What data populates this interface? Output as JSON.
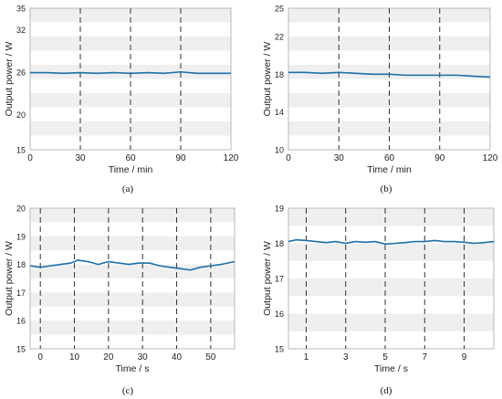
{
  "chart_data": [
    {
      "type": "line",
      "caption": "(a)",
      "xlabel": "Time / min",
      "ylabel": "Output power / W",
      "xlim": [
        0,
        120
      ],
      "ylim": [
        15,
        35
      ],
      "xticks": [
        0,
        30,
        60,
        90,
        120
      ],
      "yticks": [
        15,
        20,
        26,
        32,
        35
      ],
      "vlines": [
        30,
        60,
        90
      ],
      "band_step": 2,
      "grid": false,
      "legend": "none",
      "series": [
        {
          "color": "#1f6fa8",
          "x": [
            0,
            10,
            20,
            30,
            40,
            50,
            60,
            70,
            80,
            90,
            100,
            110,
            120
          ],
          "y": [
            25.9,
            25.9,
            25.8,
            25.9,
            25.8,
            25.9,
            25.8,
            25.9,
            25.8,
            26.0,
            25.8,
            25.8,
            25.8
          ]
        }
      ]
    },
    {
      "type": "line",
      "caption": "(b)",
      "xlabel": "Time / min",
      "ylabel": "Output power / W",
      "xlim": [
        0,
        120
      ],
      "ylim": [
        10,
        25
      ],
      "xticks": [
        0,
        30,
        60,
        90,
        120
      ],
      "yticks": [
        10,
        14,
        18,
        22,
        25
      ],
      "vlines": [
        30,
        60,
        90
      ],
      "band_step": 1.5,
      "grid": false,
      "legend": "none",
      "series": [
        {
          "color": "#1f6fa8",
          "x": [
            0,
            10,
            20,
            30,
            40,
            50,
            60,
            70,
            80,
            90,
            100,
            110,
            120
          ],
          "y": [
            18.2,
            18.2,
            18.1,
            18.2,
            18.1,
            18.0,
            18.0,
            17.9,
            17.9,
            17.9,
            17.9,
            17.8,
            17.7
          ]
        }
      ]
    },
    {
      "type": "line",
      "caption": "(c)",
      "xlabel": "Time / s",
      "ylabel": "Output power / W",
      "xlim": [
        -3,
        57
      ],
      "ylim": [
        15,
        20
      ],
      "xticks": [
        0,
        10,
        20,
        30,
        40,
        50
      ],
      "yticks": [
        15,
        16,
        17,
        18,
        19,
        20
      ],
      "vlines": [
        0,
        10,
        20,
        30,
        40,
        50
      ],
      "band_step": 0.5,
      "grid": false,
      "legend": "none",
      "series": [
        {
          "color": "#1f6fa8",
          "x": [
            -3,
            0,
            3,
            6,
            9,
            11,
            14,
            17,
            20,
            23,
            26,
            29,
            32,
            35,
            38,
            41,
            44,
            47,
            50,
            53,
            57
          ],
          "y": [
            17.95,
            17.9,
            17.95,
            18.0,
            18.05,
            18.15,
            18.1,
            18.0,
            18.1,
            18.05,
            18.0,
            18.05,
            18.05,
            17.95,
            17.9,
            17.85,
            17.8,
            17.9,
            17.95,
            18.0,
            18.1
          ]
        }
      ]
    },
    {
      "type": "line",
      "caption": "(d)",
      "xlabel": "Time / s",
      "ylabel": "Output power / W",
      "xlim": [
        0.1,
        10.5
      ],
      "ylim": [
        15,
        19
      ],
      "xticks": [
        1,
        3,
        5,
        7,
        9
      ],
      "yticks": [
        15,
        16,
        17,
        18,
        19
      ],
      "vlines": [
        1,
        3,
        5,
        7,
        9
      ],
      "band_step": 0.5,
      "grid": false,
      "legend": "none",
      "series": [
        {
          "color": "#1f6fa8",
          "x": [
            0.1,
            0.5,
            1,
            1.5,
            2,
            2.5,
            3,
            3.5,
            4,
            4.5,
            5,
            5.5,
            6,
            6.5,
            7,
            7.5,
            8,
            8.5,
            9,
            9.5,
            10,
            10.5
          ],
          "y": [
            18.05,
            18.1,
            18.08,
            18.05,
            18.02,
            18.05,
            18.0,
            18.05,
            18.03,
            18.05,
            17.98,
            18.0,
            18.02,
            18.05,
            18.05,
            18.08,
            18.05,
            18.05,
            18.03,
            18.0,
            18.02,
            18.05
          ]
        }
      ]
    }
  ]
}
